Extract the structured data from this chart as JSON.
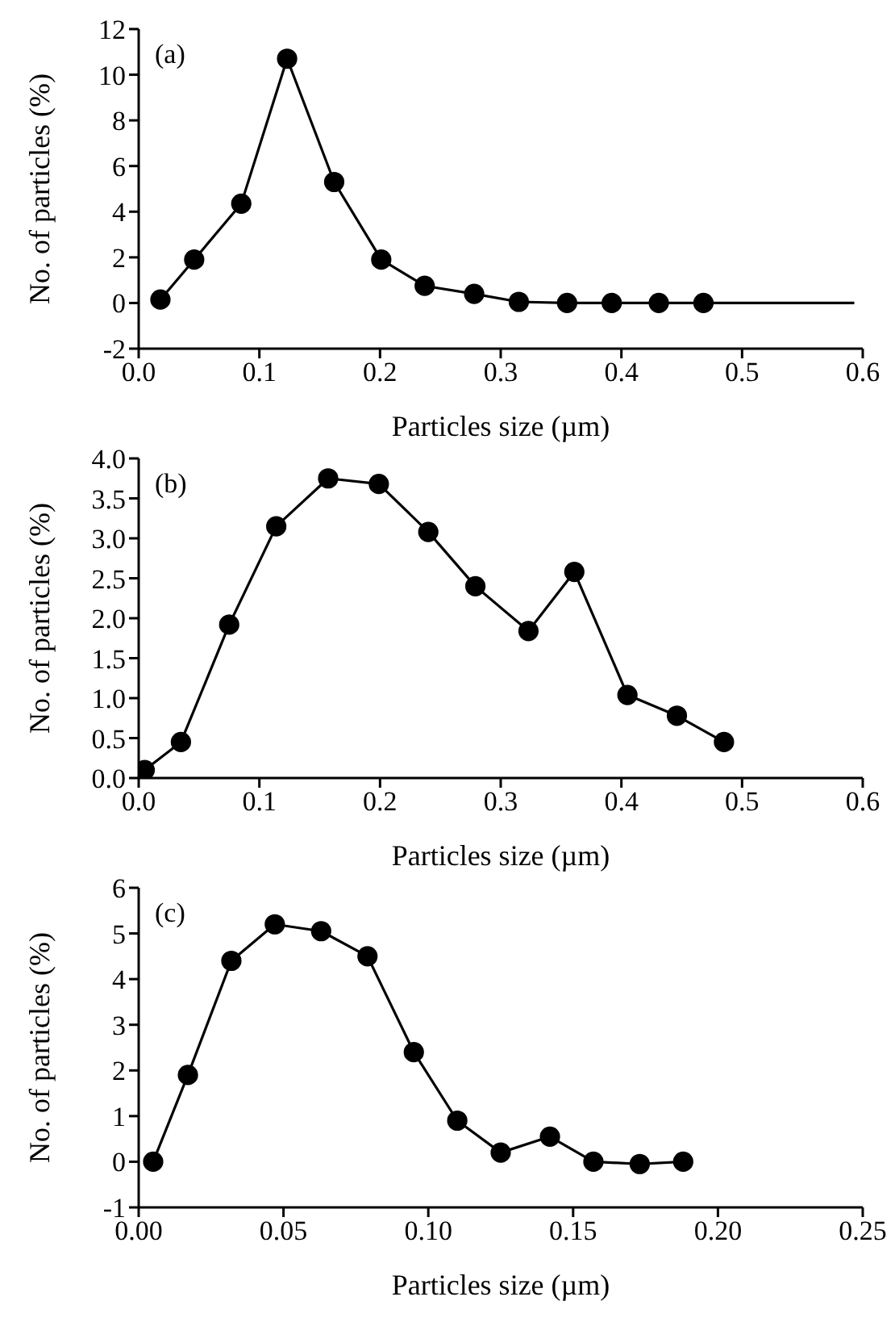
{
  "chart_data": [
    {
      "type": "line",
      "annotations": [
        "(a)"
      ],
      "xlabel": "Particles size (µm)",
      "ylabel": "No. of particles (%)",
      "xlim": [
        0,
        0.6
      ],
      "xticks": [
        {
          "value": 0,
          "label": "0.0"
        },
        0.1,
        0.2,
        0.3,
        0.4,
        0.5,
        0.6
      ],
      "ylim": [
        -2,
        12
      ],
      "yticks": [
        -2,
        0,
        2,
        4,
        6,
        8,
        10,
        12
      ],
      "marker": "circle",
      "line_style": "solid",
      "series": [
        {
          "color": "#000000",
          "x": [
            0.018,
            0.046,
            0.085,
            0.123,
            0.162,
            0.201,
            0.237,
            0.278,
            0.315,
            0.355,
            0.392,
            0.431,
            0.468
          ],
          "values": [
            0.15,
            1.9,
            4.35,
            10.7,
            5.3,
            1.9,
            0.75,
            0.4,
            0.05,
            0,
            0,
            0,
            0
          ]
        },
        {
          "color": "#000000",
          "marker": "none",
          "x": [
            0.468,
            0.593
          ],
          "values": [
            0,
            0
          ]
        }
      ]
    },
    {
      "type": "line",
      "annotations": [
        "(b)"
      ],
      "xlabel": "Particles size (µm)",
      "ylabel": "No. of particles (%)",
      "xlim": [
        0,
        0.6
      ],
      "xticks": [
        {
          "value": 0,
          "label": "0.0"
        },
        0.1,
        0.2,
        0.3,
        0.4,
        0.5,
        0.6
      ],
      "ylim": [
        0,
        4
      ],
      "yticks": [
        {
          "value": 0,
          "label": "0.0"
        },
        0.5,
        {
          "value": 1,
          "label": "1.0"
        },
        1.5,
        {
          "value": 2,
          "label": "2.0"
        },
        2.5,
        {
          "value": 3,
          "label": "3.0"
        },
        3.5,
        {
          "value": 4,
          "label": "4.0"
        }
      ],
      "marker": "circle",
      "line_style": "solid",
      "series": [
        {
          "color": "#000000",
          "x": [
            0.005,
            0.035,
            0.075,
            0.114,
            0.157,
            0.199,
            0.24,
            0.279,
            0.323,
            0.361,
            0.405,
            0.446,
            0.485
          ],
          "values": [
            0.1,
            0.45,
            1.92,
            3.15,
            3.75,
            3.68,
            3.08,
            2.4,
            1.84,
            2.58,
            1.04,
            0.78,
            0.45
          ]
        }
      ]
    },
    {
      "type": "line",
      "annotations": [
        "(c)"
      ],
      "xlabel": "Particles size (µm)",
      "ylabel": "No. of particles (%)",
      "xlim": [
        0,
        0.25
      ],
      "xticks": [
        {
          "value": 0,
          "label": "0.00"
        },
        0.05,
        {
          "value": 0.1,
          "label": "0.10"
        },
        0.15,
        {
          "value": 0.2,
          "label": "0.20"
        },
        0.25
      ],
      "ylim": [
        -1,
        6
      ],
      "yticks": [
        -1,
        0,
        1,
        2,
        3,
        4,
        5,
        6
      ],
      "marker": "circle",
      "line_style": "solid",
      "series": [
        {
          "color": "#000000",
          "x": [
            0.005,
            0.017,
            0.032,
            0.047,
            0.063,
            0.079,
            0.095,
            0.11,
            0.125,
            0.142,
            0.157,
            0.173,
            0.188
          ],
          "values": [
            0,
            1.9,
            4.4,
            5.2,
            5.05,
            4.5,
            2.4,
            0.9,
            0.2,
            0.55,
            0,
            -0.05,
            0
          ]
        }
      ]
    }
  ]
}
